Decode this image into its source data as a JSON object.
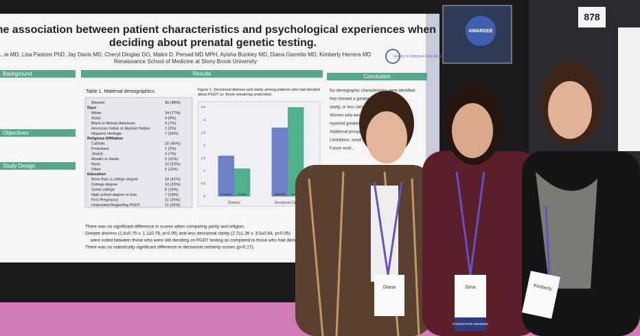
{
  "poster": {
    "title_lines": [
      "The association between patient characteristics and psychological experiences when",
      "deciding about prenatal genetic testing."
    ],
    "authors": "...ie MD, Lisa Pastore PhD, Jay Davis MD, Cheryl Dinglas DO, Malini D. Persad MD MPH, Ayisha Buckley MD, Diana Garretto MD, Kimberly Herrera MD",
    "institution": "Renaissance School of Medicine at Stony Brook University",
    "logo": "Society for Maternal-Fetal Medicine",
    "left_headers": [
      "Background",
      "Objectives",
      "Study Design"
    ],
    "results_header": "Results",
    "conclusion_header": "Conclusion",
    "table": {
      "caption": "Table 1. Maternal demographics.",
      "rows": [
        [
          "Married",
          "30 (48%)"
        ],
        [
          "Race",
          ""
        ],
        [
          "White",
          "34 (77%)"
        ],
        [
          "Asian",
          "4 (9%)"
        ],
        [
          "Black or African American",
          "3 (7%)"
        ],
        [
          "American Indian or Alaskan Native",
          "1 (2%)"
        ],
        [
          "Hispanic Heritage",
          "7 (16%)"
        ],
        [
          "Religious Affiliation",
          ""
        ],
        [
          "Catholic",
          "20 (45%)"
        ],
        [
          "Protestant",
          "1 (2%)"
        ],
        [
          "Jewish",
          "3 (7%)"
        ],
        [
          "Muslim or Hindu",
          "5 (11%)"
        ],
        [
          "None",
          "10 (23%)"
        ],
        [
          "Other",
          "5 (11%)"
        ],
        [
          "Education",
          ""
        ],
        [
          "More than a college degree",
          "18 (42%)"
        ],
        [
          "College degree",
          "10 (23%)"
        ],
        [
          "Some college",
          "8 (19%)"
        ],
        [
          "High school degree or less",
          "7 (16%)"
        ],
        [
          "First Pregnancy",
          "11 (25%)"
        ],
        [
          "Undecided Regarding PGDT",
          "11 (25%)"
        ]
      ]
    },
    "figure": {
      "caption": "Figure 1. Decisional distress and clarity among patients who had decided about PGDT vs. those remaining undecided.",
      "type": "bar",
      "categories": [
        "Distress",
        "Decisional Clarity"
      ],
      "series": [
        {
          "name": "Undecided",
          "color": "#6f7fc8",
          "values": [
            1.6,
            2.7
          ]
        },
        {
          "name": "Decided",
          "color": "#4fb08c",
          "values": [
            1.1,
            3.5
          ]
        }
      ],
      "ylim": [
        0,
        3.5
      ],
      "yticks": [
        0,
        0.5,
        1,
        1.5,
        2,
        2.5,
        3,
        3.5
      ]
    },
    "results": [
      "There was no significant difference in scores when comparing parity and religion.",
      "Greater distress (1.6±0.75 v. 1.1±0.78, p<0.05) and less decisional clarity (2.7±1.36 v. 3.5±0.64, p<0.05)",
      "were noted between those who were still deciding on PGDT testing as compared to those who had decided",
      "There was no statistically significant difference in decisional certainty scores (p=0.17)."
    ],
    "conclusion": [
      "No demographic characteristics were identified",
      "that showed a greater degree of distress,",
      "clarity, or less certainty in deciding",
      "Women who were undecided on decision",
      "reported greater distress and lower clarity",
      "Additional prospective studies to follow up",
      "Limitations: small sample size",
      "Future work..."
    ]
  },
  "booth_number": "878",
  "award_sign": "AWARDEE",
  "badges": [
    "Diana",
    "Gina",
    "Kimberly"
  ],
  "ribbon": "FOUNDATION AWARDEE"
}
